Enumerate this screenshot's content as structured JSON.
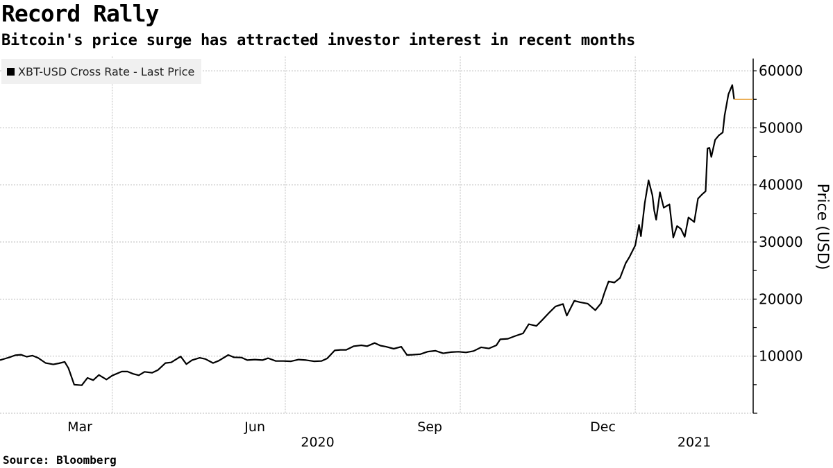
{
  "chart_data": {
    "type": "line",
    "title": "Record Rally",
    "subtitle": "Bitcoin's price surge has attracted investor interest in recent months",
    "source": "Source: Bloomberg",
    "xlabel": "",
    "ylabel": "Price (USD)",
    "xlim": [
      "2020-02-02",
      "2021-03-04"
    ],
    "ylim": [
      0,
      62500
    ],
    "y_ticks": [
      10000,
      20000,
      30000,
      40000,
      50000,
      60000
    ],
    "y_tick_labels": [
      "10000",
      "20000",
      "30000",
      "40000",
      "50000",
      "60000"
    ],
    "x_tick_labels": [
      {
        "label": "Mar",
        "date": "2020-03-15"
      },
      {
        "label": "Jun",
        "date": "2020-06-15"
      },
      {
        "label": "Sep",
        "date": "2020-09-15"
      },
      {
        "label": "Dec",
        "date": "2020-12-15"
      }
    ],
    "year_labels": [
      {
        "label": "2020",
        "date": "2020-07-18"
      },
      {
        "label": "2021",
        "date": "2021-02-01"
      }
    ],
    "x_gridlines": [
      "2020-04-01",
      "2020-07-01",
      "2020-10-01",
      "2021-01-01"
    ],
    "grid": true,
    "y_axis_position": "right",
    "legend": {
      "placement": "top-left",
      "entries": [
        "XBT-USD Cross Rate - Last Price"
      ]
    },
    "last_price": 55000,
    "colors": {
      "line": "#000000",
      "last_price_line": "#e8a33d",
      "grid": "#bbbbbb",
      "legend_bg": "#f0f0f0"
    },
    "series": [
      {
        "name": "XBT-USD Cross Rate - Last Price",
        "x": [
          "2020-02-02",
          "2020-02-05",
          "2020-02-07",
          "2020-02-10",
          "2020-02-13",
          "2020-02-16",
          "2020-02-19",
          "2020-02-22",
          "2020-02-26",
          "2020-03-01",
          "2020-03-04",
          "2020-03-07",
          "2020-03-09",
          "2020-03-12",
          "2020-03-16",
          "2020-03-19",
          "2020-03-22",
          "2020-03-25",
          "2020-03-29",
          "2020-04-01",
          "2020-04-06",
          "2020-04-09",
          "2020-04-12",
          "2020-04-15",
          "2020-04-18",
          "2020-04-22",
          "2020-04-25",
          "2020-04-29",
          "2020-05-02",
          "2020-05-07",
          "2020-05-10",
          "2020-05-13",
          "2020-05-17",
          "2020-05-20",
          "2020-05-24",
          "2020-05-27",
          "2020-06-01",
          "2020-06-04",
          "2020-06-08",
          "2020-06-11",
          "2020-06-15",
          "2020-06-19",
          "2020-06-22",
          "2020-06-26",
          "2020-06-30",
          "2020-07-04",
          "2020-07-08",
          "2020-07-12",
          "2020-07-16",
          "2020-07-20",
          "2020-07-23",
          "2020-07-27",
          "2020-07-30",
          "2020-08-02",
          "2020-08-06",
          "2020-08-10",
          "2020-08-13",
          "2020-08-17",
          "2020-08-20",
          "2020-08-23",
          "2020-08-27",
          "2020-08-31",
          "2020-09-03",
          "2020-09-06",
          "2020-09-10",
          "2020-09-14",
          "2020-09-18",
          "2020-09-22",
          "2020-09-26",
          "2020-09-30",
          "2020-10-04",
          "2020-10-08",
          "2020-10-12",
          "2020-10-16",
          "2020-10-20",
          "2020-10-22",
          "2020-10-26",
          "2020-10-30",
          "2020-11-03",
          "2020-11-06",
          "2020-11-10",
          "2020-11-13",
          "2020-11-17",
          "2020-11-20",
          "2020-11-24",
          "2020-11-26",
          "2020-11-30",
          "2020-12-03",
          "2020-12-07",
          "2020-12-11",
          "2020-12-14",
          "2020-12-16",
          "2020-12-18",
          "2020-12-21",
          "2020-12-24",
          "2020-12-27",
          "2020-12-29",
          "2021-01-01",
          "2021-01-03",
          "2021-01-04",
          "2021-01-06",
          "2021-01-08",
          "2021-01-10",
          "2021-01-11",
          "2021-01-12",
          "2021-01-14",
          "2021-01-16",
          "2021-01-19",
          "2021-01-21",
          "2021-01-23",
          "2021-01-25",
          "2021-01-27",
          "2021-01-29",
          "2021-02-01",
          "2021-02-03",
          "2021-02-05",
          "2021-02-07",
          "2021-02-08",
          "2021-02-09",
          "2021-02-10",
          "2021-02-12",
          "2021-02-14",
          "2021-02-16",
          "2021-02-17",
          "2021-02-19",
          "2021-02-21",
          "2021-02-22"
        ],
        "values": [
          9300,
          9600,
          9800,
          10150,
          10250,
          9900,
          10100,
          9700,
          8800,
          8550,
          8750,
          9000,
          7900,
          5000,
          4900,
          6200,
          5800,
          6700,
          5900,
          6600,
          7300,
          7300,
          6900,
          6650,
          7250,
          7100,
          7550,
          8800,
          8900,
          9950,
          8600,
          9300,
          9700,
          9500,
          8800,
          9200,
          10200,
          9800,
          9750,
          9300,
          9400,
          9300,
          9650,
          9150,
          9150,
          9100,
          9400,
          9300,
          9100,
          9150,
          9600,
          11000,
          11100,
          11100,
          11750,
          11900,
          11750,
          12300,
          11850,
          11650,
          11300,
          11650,
          10200,
          10250,
          10350,
          10800,
          10950,
          10500,
          10700,
          10780,
          10650,
          10900,
          11550,
          11350,
          11900,
          12950,
          13050,
          13550,
          14000,
          15600,
          15300,
          16300,
          17700,
          18700,
          19150,
          17100,
          19700,
          19450,
          19200,
          18050,
          19250,
          21300,
          23100,
          22900,
          23700,
          26300,
          27400,
          29400,
          33000,
          31000,
          36800,
          40800,
          38200,
          35500,
          33900,
          38700,
          36000,
          36600,
          30800,
          32800,
          32300,
          30900,
          34300,
          33500,
          37600,
          38300,
          38900,
          46400,
          46500,
          44900,
          47900,
          48700,
          49200,
          52200,
          55900,
          57500,
          55000
        ]
      }
    ]
  }
}
